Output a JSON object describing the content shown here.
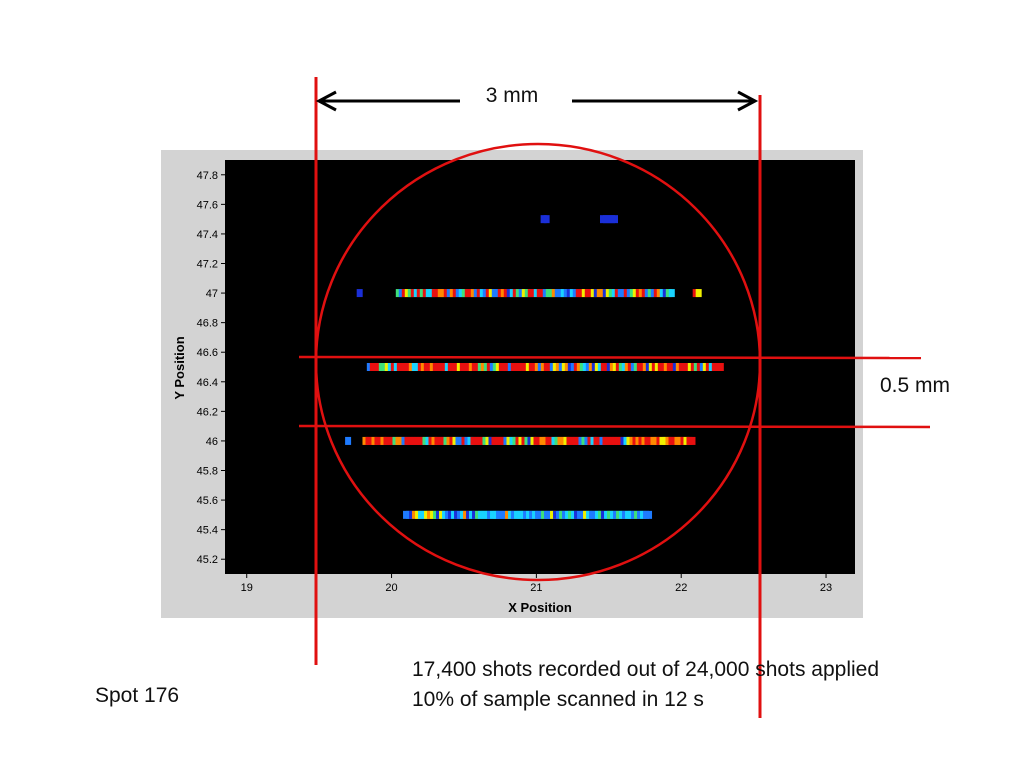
{
  "spot_label": "Spot 176",
  "notes": {
    "line1": "17,400 shots recorded out of 24,000 shots applied",
    "line2": "10% of sample scanned in 12 s"
  },
  "annotations": {
    "width_label": "3 mm",
    "spacing_label": "0.5 mm",
    "annotation_color": "#e01010"
  },
  "chart_data": {
    "type": "scatter",
    "xlabel": "X Position",
    "ylabel": "Y Position",
    "xlim": [
      18.85,
      23.2
    ],
    "ylim": [
      45.1,
      47.9
    ],
    "xticks": [
      "19",
      "20",
      "21",
      "22",
      "23"
    ],
    "yticks": [
      "45.2",
      "45.4",
      "45.6",
      "45.8",
      "46",
      "46.2",
      "46.4",
      "46.6",
      "46.8",
      "47",
      "47.2",
      "47.4",
      "47.6",
      "47.8"
    ],
    "background": "#000000",
    "frame_color": "#d3d3d3",
    "colormap": [
      "#1a2fd8",
      "#1e7bff",
      "#19d3ff",
      "#3ee07a",
      "#f0f000",
      "#ff8a00",
      "#e81010"
    ],
    "rows": [
      {
        "y": 47.5,
        "segments": [
          [
            21.05,
            21.08
          ],
          [
            21.46,
            21.56
          ]
        ],
        "intensity": "low"
      },
      {
        "y": 47.0,
        "segments": [
          [
            19.78,
            19.8
          ],
          [
            20.05,
            21.95
          ],
          [
            22.1,
            22.13
          ]
        ],
        "intensity": "mixed"
      },
      {
        "y": 46.5,
        "segments": [
          [
            19.85,
            22.28
          ]
        ],
        "intensity": "high"
      },
      {
        "y": 46.0,
        "segments": [
          [
            19.7,
            19.72
          ],
          [
            19.82,
            22.08
          ]
        ],
        "intensity": "high"
      },
      {
        "y": 45.5,
        "segments": [
          [
            20.1,
            21.78
          ]
        ],
        "intensity": "medium"
      }
    ]
  }
}
